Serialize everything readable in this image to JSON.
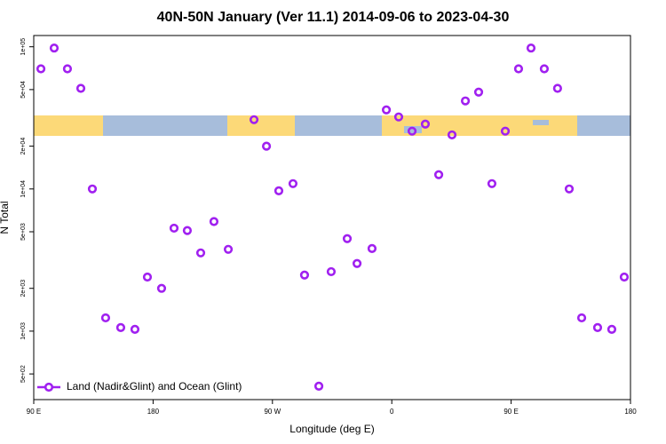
{
  "chart_data": {
    "type": "scatter",
    "title": "40N-50N January (Ver 11.1)   2014-09-06 to 2023-04-30",
    "x_label": "Longitude (deg E)",
    "y_label": "N Total",
    "log_y": true,
    "legend_position": "bottom-left",
    "xlim": [
      90,
      540
    ],
    "xticks": [
      {
        "value": 90,
        "label": "90 E"
      },
      180,
      {
        "value": 270,
        "label": "90 W"
      },
      {
        "value": 360,
        "label": "0"
      },
      {
        "value": 450,
        "label": "90 E"
      },
      {
        "value": 540,
        "label": "180"
      }
    ],
    "ylim": [
      330,
      120000
    ],
    "yticks": [
      {
        "value": 500,
        "label": "5e+02"
      },
      {
        "value": 1000,
        "label": "1e+03"
      },
      {
        "value": 2000,
        "label": "2e+03"
      },
      {
        "value": 5000,
        "label": "5e+03"
      },
      {
        "value": 10000,
        "label": "1e+04"
      },
      {
        "value": 20000,
        "label": "2e+04"
      },
      {
        "value": 50000,
        "label": "5e+04"
      },
      {
        "value": 100000,
        "label": "1e+05"
      }
    ],
    "series": [
      {
        "name": "Land (Nadir&Glint) and Ocean (Glint)",
        "color": "#a020f0",
        "x": [
          95.4,
          105.4,
          115.4,
          125.5,
          134.2,
          144.2,
          155.6,
          166.3,
          175.7,
          186.4,
          195.8,
          205.8,
          215.9,
          225.9,
          236.7,
          256.1,
          265.5,
          274.8,
          285.5,
          294.2,
          305,
          314.3,
          326.4,
          333.8,
          345.1,
          355.9,
          365.2,
          375.3,
          385.3,
          395.4,
          405.4,
          415.5,
          425.5,
          435.5,
          445.6,
          455.6,
          465,
          475,
          485,
          493.8,
          503.2,
          515.2,
          525.9,
          535.3
        ],
        "values": [
          70000,
          98000,
          70000,
          51000,
          10000,
          1240,
          1060,
          1030,
          2400,
          2000,
          5300,
          5100,
          3550,
          5900,
          3760,
          30700,
          20000,
          9700,
          10900,
          2480,
          410,
          2620,
          4470,
          2990,
          3810,
          36000,
          32100,
          25500,
          28600,
          12600,
          24000,
          41600,
          48000,
          10900,
          25500,
          70000,
          98000,
          70000,
          51000,
          10000,
          1240,
          1060,
          1030,
          2400
        ]
      }
    ]
  }
}
